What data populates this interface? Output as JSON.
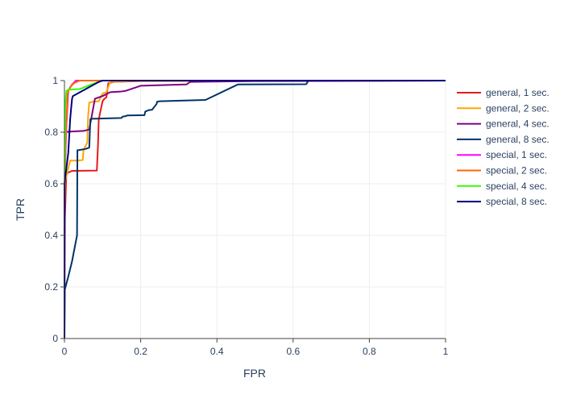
{
  "chart_data": {
    "type": "line",
    "title": "",
    "xlabel": "FPR",
    "ylabel": "TPR",
    "xlim": [
      0,
      1
    ],
    "ylim": [
      0,
      1
    ],
    "grid": true,
    "legend_position": "right",
    "x_ticks": [
      "0",
      "0.2",
      "0.4",
      "0.6",
      "0.8",
      "1"
    ],
    "y_ticks": [
      "0",
      "0.2",
      "0.4",
      "0.6",
      "0.8",
      "1"
    ],
    "series": [
      {
        "name": "general, 1 sec.",
        "color": "#e41a1c",
        "x": [
          0,
          0,
          0.005,
          0.02,
          0.085,
          0.088,
          0.09,
          0.1,
          0.105,
          0.11,
          0.115,
          0.13,
          0.2,
          1
        ],
        "y": [
          0,
          0.42,
          0.64,
          0.65,
          0.651,
          0.75,
          0.85,
          0.92,
          0.93,
          0.935,
          0.99,
          0.995,
          0.998,
          1
        ]
      },
      {
        "name": "general, 2 sec.",
        "color": "#ffa500",
        "x": [
          0,
          0,
          0.015,
          0.03,
          0.048,
          0.05,
          0.053,
          0.06,
          0.062,
          0.065,
          0.075,
          0.09,
          0.1,
          0.11,
          0.12,
          0.18,
          1
        ],
        "y": [
          0,
          0.6,
          0.69,
          0.69,
          0.692,
          0.73,
          0.74,
          0.76,
          0.86,
          0.915,
          0.918,
          0.92,
          0.95,
          0.955,
          0.995,
          0.998,
          1
        ]
      },
      {
        "name": "general, 4 sec.",
        "color": "#800080",
        "x": [
          0,
          0.002,
          0.005,
          0.01,
          0.05,
          0.065,
          0.08,
          0.09,
          0.1,
          0.12,
          0.15,
          0.16,
          0.2,
          0.32,
          0.33,
          0.5,
          1
        ],
        "y": [
          0,
          0.8,
          0.8,
          0.802,
          0.805,
          0.81,
          0.93,
          0.935,
          0.94,
          0.955,
          0.958,
          0.96,
          0.98,
          0.985,
          0.995,
          0.998,
          1
        ]
      },
      {
        "name": "general, 8 sec.",
        "color": "#003366",
        "x": [
          0,
          0.001,
          0.01,
          0.02,
          0.033,
          0.034,
          0.036,
          0.055,
          0.065,
          0.068,
          0.07,
          0.15,
          0.152,
          0.16,
          0.165,
          0.21,
          0.212,
          0.22,
          0.23,
          0.242,
          0.243,
          0.25,
          0.37,
          0.455,
          0.634,
          0.636,
          0.64,
          1
        ],
        "y": [
          0,
          0.19,
          0.24,
          0.3,
          0.4,
          0.73,
          0.73,
          0.735,
          0.74,
          0.85,
          0.852,
          0.855,
          0.86,
          0.862,
          0.865,
          0.866,
          0.88,
          0.885,
          0.887,
          0.91,
          0.918,
          0.92,
          0.925,
          0.985,
          0.986,
          0.99,
          1,
          1
        ]
      },
      {
        "name": "special, 1 sec.",
        "color": "#ff00ff",
        "x": [
          0,
          0,
          0.005,
          0.01,
          0.02,
          0.03,
          1
        ],
        "y": [
          0,
          0.58,
          0.82,
          0.96,
          0.985,
          1,
          1
        ]
      },
      {
        "name": "special, 2 sec.",
        "color": "#ff6600",
        "x": [
          0,
          0,
          0.003,
          0.008,
          0.015,
          0.025,
          0.04,
          1
        ],
        "y": [
          0,
          0.52,
          0.75,
          0.95,
          0.975,
          0.99,
          1,
          1
        ]
      },
      {
        "name": "special, 4 sec.",
        "color": "#33ff00",
        "x": [
          0,
          0,
          0.002,
          0.005,
          0.01,
          0.04,
          0.07,
          0.1,
          1
        ],
        "y": [
          0,
          0.55,
          0.9,
          0.96,
          0.965,
          0.967,
          0.985,
          1,
          1
        ]
      },
      {
        "name": "special, 8 sec.",
        "color": "#00007f",
        "x": [
          0,
          0,
          0.01,
          0.015,
          0.018,
          0.02,
          0.022,
          0.09,
          0.1,
          0.11,
          1
        ],
        "y": [
          0,
          0.6,
          0.72,
          0.85,
          0.9,
          0.93,
          0.94,
          0.995,
          1,
          1,
          1
        ]
      }
    ]
  }
}
